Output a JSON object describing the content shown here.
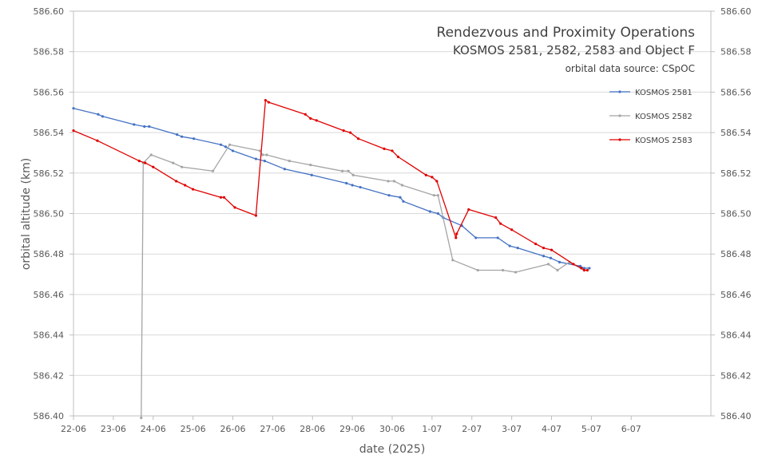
{
  "chart_data": {
    "type": "line",
    "title": "Rendezvous and Proximity Operations",
    "subtitle": "KOSMOS 2581, 2582, 2583 and Object F",
    "source": "orbital data source: CSpOC",
    "xlabel": "date (2025)",
    "ylabel": "orbital altitude (km)",
    "x_unit": "days since 22-06",
    "xlim": [
      0,
      16
    ],
    "ylim": [
      586.4,
      586.6
    ],
    "x_ticks": [
      {
        "x": 0,
        "label": "22-06"
      },
      {
        "x": 1,
        "label": "23-06"
      },
      {
        "x": 2,
        "label": "24-06"
      },
      {
        "x": 3,
        "label": "25-06"
      },
      {
        "x": 4,
        "label": "26-06"
      },
      {
        "x": 5,
        "label": "27-06"
      },
      {
        "x": 6,
        "label": "28-06"
      },
      {
        "x": 7,
        "label": "29-06"
      },
      {
        "x": 8,
        "label": "30-06"
      },
      {
        "x": 9,
        "label": "1-07"
      },
      {
        "x": 10,
        "label": "2-07"
      },
      {
        "x": 11,
        "label": "3-07"
      },
      {
        "x": 12,
        "label": "4-07"
      },
      {
        "x": 13,
        "label": "5-07"
      },
      {
        "x": 14,
        "label": "6-07"
      }
    ],
    "y_ticks": [
      {
        "v": 586.4,
        "label": "586.40"
      },
      {
        "v": 586.42,
        "label": "586.42"
      },
      {
        "v": 586.44,
        "label": "586.44"
      },
      {
        "v": 586.46,
        "label": "586.46"
      },
      {
        "v": 586.48,
        "label": "586.48"
      },
      {
        "v": 586.5,
        "label": "586.50"
      },
      {
        "v": 586.52,
        "label": "586.52"
      },
      {
        "v": 586.54,
        "label": "586.54"
      },
      {
        "v": 586.56,
        "label": "586.56"
      },
      {
        "v": 586.58,
        "label": "586.58"
      },
      {
        "v": 586.6,
        "label": "586.60"
      }
    ],
    "legend_position": "top-right",
    "series": [
      {
        "name": "KOSMOS 2581",
        "color": "#4472c4",
        "points": [
          [
            0.0,
            586.552
          ],
          [
            0.62,
            586.549
          ],
          [
            0.73,
            586.548
          ],
          [
            1.52,
            586.544
          ],
          [
            1.78,
            586.543
          ],
          [
            1.9,
            586.543
          ],
          [
            2.6,
            586.539
          ],
          [
            2.72,
            586.538
          ],
          [
            3.02,
            586.537
          ],
          [
            3.7,
            586.534
          ],
          [
            3.82,
            586.533
          ],
          [
            4.0,
            586.531
          ],
          [
            4.58,
            586.527
          ],
          [
            4.8,
            586.526
          ],
          [
            5.3,
            586.522
          ],
          [
            5.98,
            586.519
          ],
          [
            6.85,
            586.515
          ],
          [
            7.0,
            586.514
          ],
          [
            7.2,
            586.513
          ],
          [
            7.92,
            586.509
          ],
          [
            8.2,
            586.508
          ],
          [
            8.28,
            586.506
          ],
          [
            8.95,
            586.501
          ],
          [
            9.15,
            586.5
          ],
          [
            9.28,
            586.498
          ],
          [
            9.75,
            586.494
          ],
          [
            10.1,
            586.488
          ],
          [
            10.65,
            586.488
          ],
          [
            10.95,
            586.484
          ],
          [
            11.15,
            586.483
          ],
          [
            11.8,
            586.479
          ],
          [
            11.98,
            586.478
          ],
          [
            12.2,
            586.476
          ],
          [
            12.72,
            586.474
          ],
          [
            12.82,
            586.473
          ],
          [
            12.95,
            586.473
          ]
        ]
      },
      {
        "name": "KOSMOS 2582",
        "color": "#a5a5a5",
        "points": [
          [
            1.7,
            586.399
          ],
          [
            1.75,
            586.525
          ],
          [
            1.95,
            586.529
          ],
          [
            2.5,
            586.525
          ],
          [
            2.72,
            586.523
          ],
          [
            3.5,
            586.521
          ],
          [
            3.92,
            586.534
          ],
          [
            4.68,
            586.531
          ],
          [
            4.75,
            586.529
          ],
          [
            4.85,
            586.529
          ],
          [
            5.42,
            586.526
          ],
          [
            5.95,
            586.524
          ],
          [
            6.75,
            586.521
          ],
          [
            6.9,
            586.521
          ],
          [
            7.02,
            586.519
          ],
          [
            7.9,
            586.516
          ],
          [
            8.05,
            586.516
          ],
          [
            8.25,
            586.514
          ],
          [
            9.05,
            586.509
          ],
          [
            9.15,
            586.509
          ],
          [
            9.52,
            586.477
          ],
          [
            10.15,
            586.472
          ],
          [
            10.78,
            586.472
          ],
          [
            11.1,
            586.471
          ],
          [
            11.92,
            586.475
          ],
          [
            12.15,
            586.472
          ],
          [
            12.45,
            586.476
          ],
          [
            12.82,
            586.472
          ]
        ]
      },
      {
        "name": "KOSMOS 2583",
        "color": "#e00000",
        "points": [
          [
            0.0,
            586.541
          ],
          [
            0.6,
            586.536
          ],
          [
            1.65,
            586.526
          ],
          [
            1.8,
            586.525
          ],
          [
            2.0,
            586.523
          ],
          [
            2.58,
            586.516
          ],
          [
            2.8,
            586.514
          ],
          [
            3.0,
            586.512
          ],
          [
            3.7,
            586.508
          ],
          [
            3.78,
            586.508
          ],
          [
            4.05,
            586.503
          ],
          [
            4.58,
            586.499
          ],
          [
            4.82,
            586.556
          ],
          [
            4.9,
            586.555
          ],
          [
            5.82,
            586.549
          ],
          [
            5.95,
            586.547
          ],
          [
            6.1,
            586.546
          ],
          [
            6.78,
            586.541
          ],
          [
            6.95,
            586.54
          ],
          [
            7.15,
            586.537
          ],
          [
            7.8,
            586.532
          ],
          [
            8.0,
            586.531
          ],
          [
            8.15,
            586.528
          ],
          [
            8.85,
            586.519
          ],
          [
            9.0,
            586.518
          ],
          [
            9.12,
            586.516
          ],
          [
            9.6,
            586.488
          ],
          [
            9.62,
            586.49
          ],
          [
            9.92,
            586.502
          ],
          [
            10.6,
            586.498
          ],
          [
            10.72,
            586.495
          ],
          [
            11.0,
            586.492
          ],
          [
            11.6,
            586.485
          ],
          [
            11.8,
            586.483
          ],
          [
            12.0,
            586.482
          ],
          [
            12.55,
            586.475
          ],
          [
            12.75,
            586.473
          ],
          [
            12.82,
            586.472
          ],
          [
            12.9,
            586.472
          ]
        ]
      }
    ]
  }
}
